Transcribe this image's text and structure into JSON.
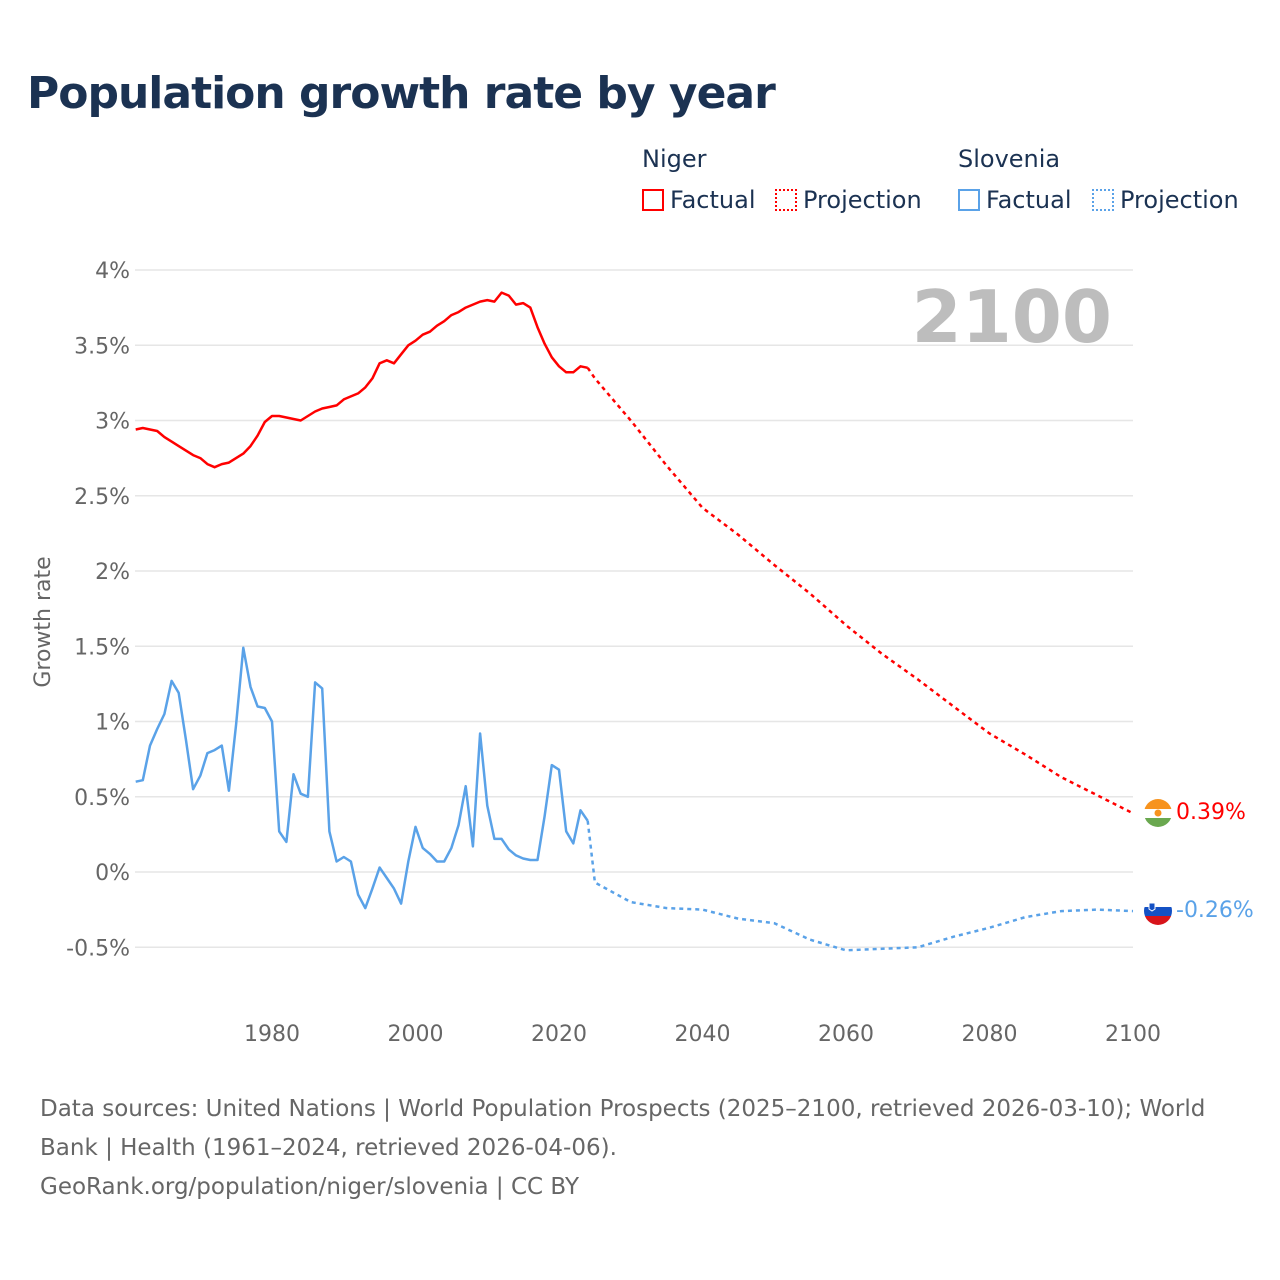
{
  "title": "Population growth rate by year",
  "legend": {
    "groups": [
      {
        "name": "Niger",
        "color": "#ff0000",
        "factual": "Factual",
        "projection": "Projection"
      },
      {
        "name": "Slovenia",
        "color": "#5aa2e8",
        "factual": "Factual",
        "projection": "Projection"
      }
    ]
  },
  "year_watermark": "2100",
  "footer": {
    "sources": "Data sources: United Nations | World Population Prospects (2025–2100, retrieved 2026-03-10); World Bank | Health (1961–2024, retrieved 2026-04-06).",
    "attribution": "GeoRank.org/population/niger/slovenia | CC BY"
  },
  "chart_data": {
    "type": "line",
    "title": "Population growth rate by year",
    "xlabel": "",
    "ylabel": "Growth rate",
    "xlim": [
      1961,
      2100
    ],
    "ylim": [
      -0.8,
      4.0
    ],
    "x_ticks": [
      1980,
      2000,
      2020,
      2040,
      2060,
      2080,
      2100
    ],
    "y_ticks": [
      -0.5,
      0,
      0.5,
      1,
      1.5,
      2,
      2.5,
      3,
      3.5,
      4
    ],
    "y_tick_labels": [
      "-0.5%",
      "0%",
      "0.5%",
      "1%",
      "1.5%",
      "2%",
      "2.5%",
      "3%",
      "3.5%",
      "4%"
    ],
    "grid": true,
    "series": [
      {
        "name": "Niger",
        "color": "#ff0000",
        "end_label": "0.39%",
        "factual": {
          "start_year": 1961,
          "values": [
            2.94,
            2.95,
            2.94,
            2.93,
            2.89,
            2.86,
            2.83,
            2.8,
            2.77,
            2.75,
            2.71,
            2.69,
            2.71,
            2.72,
            2.75,
            2.78,
            2.83,
            2.9,
            2.99,
            3.03,
            3.03,
            3.02,
            3.01,
            3.0,
            3.03,
            3.06,
            3.08,
            3.09,
            3.1,
            3.14,
            3.16,
            3.18,
            3.22,
            3.28,
            3.38,
            3.4,
            3.38,
            3.44,
            3.5,
            3.53,
            3.57,
            3.59,
            3.63,
            3.66,
            3.7,
            3.72,
            3.75,
            3.77,
            3.79,
            3.8,
            3.79,
            3.85,
            3.83,
            3.77,
            3.78,
            3.75,
            3.62,
            3.51,
            3.42,
            3.36,
            3.32,
            3.32,
            3.36,
            3.35
          ]
        },
        "projection": {
          "years": [
            2024,
            2025,
            2030,
            2035,
            2040,
            2045,
            2050,
            2055,
            2060,
            2065,
            2070,
            2075,
            2080,
            2085,
            2090,
            2095,
            2100
          ],
          "values": [
            3.35,
            3.28,
            3.0,
            2.7,
            2.42,
            2.24,
            2.04,
            1.85,
            1.64,
            1.45,
            1.28,
            1.1,
            0.92,
            0.78,
            0.63,
            0.51,
            0.39
          ]
        }
      },
      {
        "name": "Slovenia",
        "color": "#5aa2e8",
        "end_label": "-0.26%",
        "factual": {
          "start_year": 1961,
          "values": [
            0.6,
            0.61,
            0.84,
            0.95,
            1.05,
            1.27,
            1.19,
            0.88,
            0.55,
            0.64,
            0.79,
            0.81,
            0.84,
            0.54,
            0.98,
            1.49,
            1.23,
            1.1,
            1.09,
            1.0,
            0.27,
            0.2,
            0.65,
            0.52,
            0.5,
            1.26,
            1.22,
            0.27,
            0.07,
            0.1,
            0.07,
            -0.15,
            -0.24,
            -0.11,
            0.03,
            -0.04,
            -0.11,
            -0.21,
            0.07,
            0.3,
            0.16,
            0.12,
            0.07,
            0.07,
            0.16,
            0.31,
            0.57,
            0.17,
            0.92,
            0.44,
            0.22,
            0.22,
            0.15,
            0.11,
            0.09,
            0.08,
            0.08,
            0.37,
            0.71,
            0.68,
            0.27,
            0.19,
            0.41,
            0.34
          ]
        },
        "projection": {
          "years": [
            2024,
            2025,
            2030,
            2035,
            2040,
            2045,
            2050,
            2055,
            2060,
            2065,
            2070,
            2075,
            2080,
            2085,
            2090,
            2095,
            2100
          ],
          "values": [
            0.34,
            -0.07,
            -0.2,
            -0.24,
            -0.25,
            -0.31,
            -0.34,
            -0.45,
            -0.52,
            -0.51,
            -0.5,
            -0.43,
            -0.37,
            -0.3,
            -0.26,
            -0.25,
            -0.26
          ]
        }
      }
    ]
  }
}
